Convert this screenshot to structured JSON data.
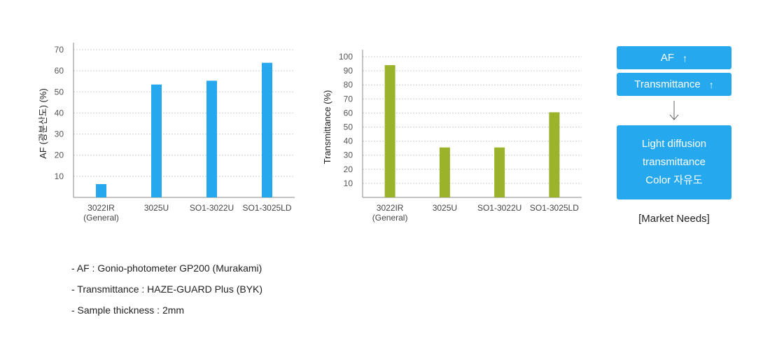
{
  "chart_data": [
    {
      "type": "bar",
      "title": "",
      "xlabel": "",
      "ylabel": "AF (광분산도) (%)",
      "ylim": [
        0,
        70
      ],
      "yticks": [
        10,
        20,
        30,
        40,
        50,
        60,
        70
      ],
      "grid": true,
      "categories": [
        {
          "line1": "3022IR",
          "line2": "(General)"
        },
        {
          "line1": "3025U",
          "line2": ""
        },
        {
          "line1": "SO1-3022U",
          "line2": ""
        },
        {
          "line1": "SO1-3025LD",
          "line2": ""
        }
      ],
      "values": [
        6.3,
        53.5,
        55.3,
        63.8
      ],
      "color": "#25a8ee"
    },
    {
      "type": "bar",
      "title": "",
      "xlabel": "",
      "ylabel": "Transmittance (%)",
      "ylim": [
        0,
        100
      ],
      "yticks": [
        10,
        20,
        30,
        40,
        50,
        60,
        70,
        80,
        90,
        100
      ],
      "grid": true,
      "categories": [
        {
          "line1": "3022IR",
          "line2": "(General)"
        },
        {
          "line1": "3025U",
          "line2": ""
        },
        {
          "line1": "SO1-3022U",
          "line2": ""
        },
        {
          "line1": "SO1-3025LD",
          "line2": ""
        }
      ],
      "values": [
        94,
        35.5,
        35.5,
        60.5
      ],
      "color": "#9bb32a"
    }
  ],
  "market_needs": {
    "af_label": "AF",
    "transmittance_label": "Transmittance",
    "up_arrow_glyph": "↑",
    "result_lines": [
      "Light diffusion",
      "transmittance",
      "Color 자유도"
    ],
    "caption": "[Market Needs]"
  },
  "notes": [
    "- AF : Gonio-photometer GP200 (Murakami)",
    "- Transmittance : HAZE-GUARD Plus (BYK)",
    "- Sample thickness : 2mm"
  ]
}
